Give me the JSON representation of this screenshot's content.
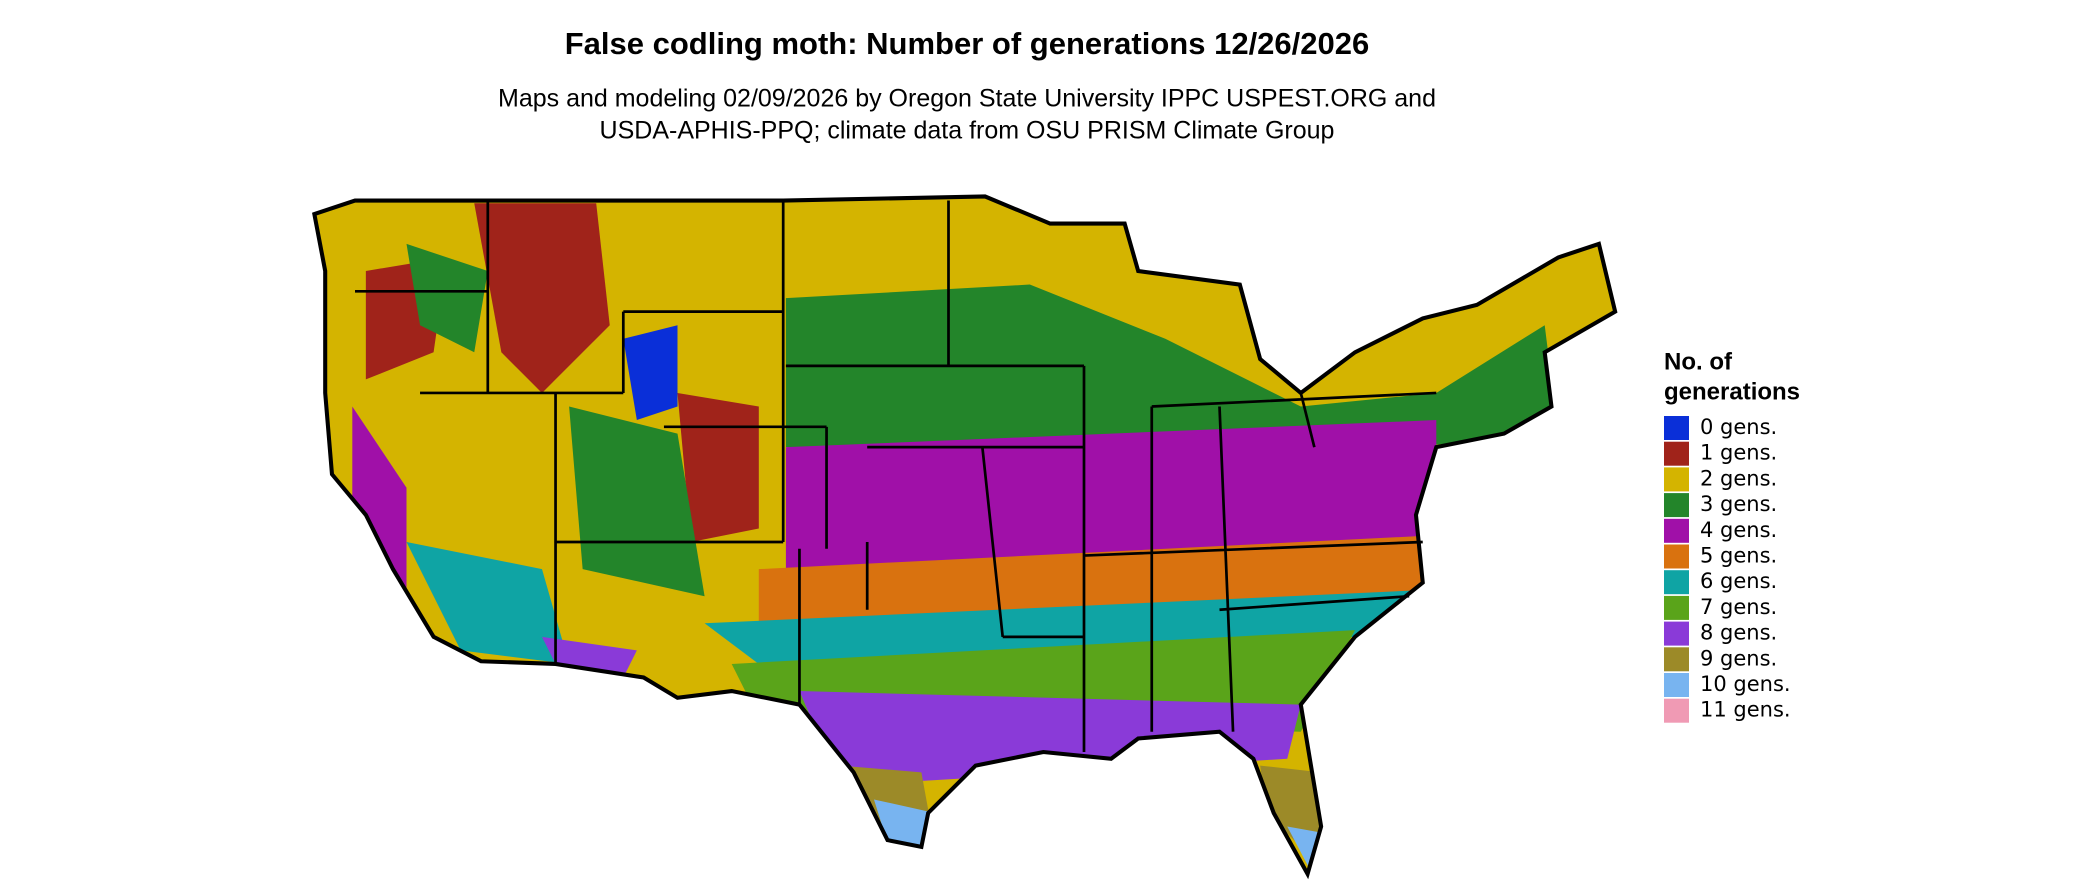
{
  "header": {
    "title": "False codling moth: Number of generations 12/26/2026",
    "subtitle": [
      "Maps and modeling 02/09/2026 by Oregon State University IPPC USPEST.ORG and",
      "USDA-APHIS-PPQ; climate data from OSU PRISM Climate Group"
    ]
  },
  "legend": {
    "title": [
      "No. of",
      "generations"
    ],
    "items": [
      {
        "label": "0 gens.",
        "color": "#0a2fd8"
      },
      {
        "label": "1 gens.",
        "color": "#a0231a"
      },
      {
        "label": "2 gens.",
        "color": "#d4b400"
      },
      {
        "label": "3 gens.",
        "color": "#23852a"
      },
      {
        "label": "4 gens.",
        "color": "#a010a8"
      },
      {
        "label": "5 gens.",
        "color": "#d9720f"
      },
      {
        "label": "6 gens.",
        "color": "#0fa4a4"
      },
      {
        "label": "7 gens.",
        "color": "#5aa41a"
      },
      {
        "label": "8 gens.",
        "color": "#8a3ad8"
      },
      {
        "label": "9 gens.",
        "color": "#9c8a28"
      },
      {
        "label": "10 gens.",
        "color": "#78b4f0"
      },
      {
        "label": "11 gens.",
        "color": "#f09ab4"
      }
    ]
  }
}
